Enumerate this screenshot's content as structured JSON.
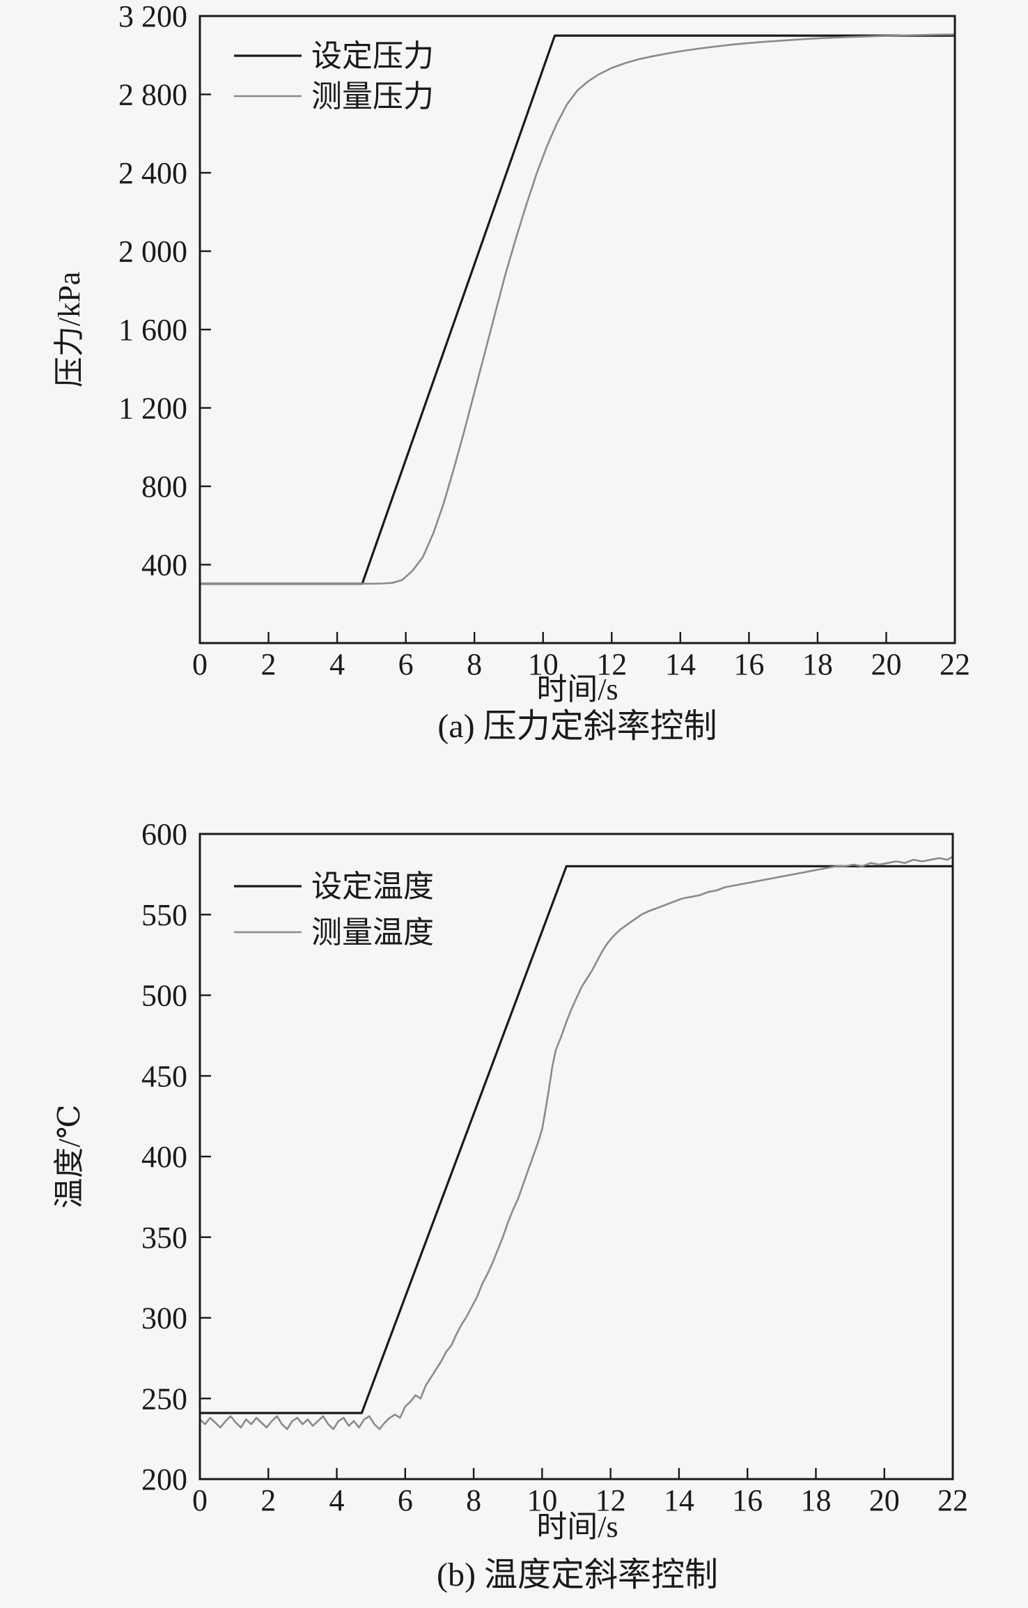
{
  "figure": {
    "background": "#f6f6f6",
    "frame_color": "#1a1a1a"
  },
  "chart_data": [
    {
      "id": "pressure",
      "type": "line",
      "caption": "(a) 压力定斜率控制",
      "x_title": "时间/s",
      "y_title": "压力/kPa",
      "xlim": [
        0,
        22
      ],
      "ylim": [
        0,
        3200
      ],
      "grid": false,
      "legend_position": "top-left",
      "x_ticks": {
        "values": [
          0,
          2,
          4,
          6,
          8,
          10,
          12,
          14,
          16,
          18,
          20,
          22
        ],
        "labels": [
          "0",
          "2",
          "4",
          "6",
          "8",
          "10",
          "12",
          "14",
          "16",
          "18",
          "20",
          "22"
        ]
      },
      "y_ticks": {
        "values": [
          400,
          800,
          1200,
          1600,
          2000,
          2400,
          2800,
          3200
        ],
        "labels": [
          "400",
          "800",
          "1 200",
          "1 600",
          "2 000",
          "2 400",
          "2 800",
          "3 200"
        ]
      },
      "legend": [
        {
          "key": "set",
          "label": "设定压力",
          "color": "#1a1a1a"
        },
        {
          "key": "measured",
          "label": "测量压力",
          "color": "#8a8a8a"
        }
      ],
      "series": [
        {
          "key": "set",
          "name": "设定压力",
          "color": "#1a1a1a",
          "width": 3.2,
          "points": [
            [
              0,
              303
            ],
            [
              4.73,
              303
            ],
            [
              10.34,
              3100
            ],
            [
              22,
              3100
            ]
          ]
        },
        {
          "key": "measured",
          "name": "测量压力",
          "color": "#8a8a8a",
          "width": 2.6,
          "points": [
            [
              0,
              303
            ],
            [
              0.5,
              303
            ],
            [
              1,
              303
            ],
            [
              1.5,
              303
            ],
            [
              2,
              303
            ],
            [
              2.5,
              303
            ],
            [
              3,
              303
            ],
            [
              3.5,
              303
            ],
            [
              4,
              303
            ],
            [
              4.5,
              303
            ],
            [
              5,
              303
            ],
            [
              5.3,
              304
            ],
            [
              5.6,
              307
            ],
            [
              5.9,
              322
            ],
            [
              6.2,
              370
            ],
            [
              6.5,
              440
            ],
            [
              6.8,
              560
            ],
            [
              7.1,
              710
            ],
            [
              7.4,
              890
            ],
            [
              7.7,
              1080
            ],
            [
              8.0,
              1280
            ],
            [
              8.3,
              1480
            ],
            [
              8.6,
              1680
            ],
            [
              8.9,
              1880
            ],
            [
              9.2,
              2060
            ],
            [
              9.5,
              2230
            ],
            [
              9.8,
              2390
            ],
            [
              10.1,
              2530
            ],
            [
              10.4,
              2650
            ],
            [
              10.7,
              2750
            ],
            [
              11.0,
              2820
            ],
            [
              11.3,
              2865
            ],
            [
              11.6,
              2900
            ],
            [
              12.0,
              2935
            ],
            [
              12.4,
              2960
            ],
            [
              12.8,
              2980
            ],
            [
              13.2,
              2995
            ],
            [
              13.6,
              3008
            ],
            [
              14.0,
              3020
            ],
            [
              14.5,
              3033
            ],
            [
              15.0,
              3044
            ],
            [
              15.5,
              3054
            ],
            [
              16.0,
              3062
            ],
            [
              16.5,
              3069
            ],
            [
              17.0,
              3075
            ],
            [
              17.5,
              3081
            ],
            [
              18.0,
              3086
            ],
            [
              18.5,
              3090
            ],
            [
              19.0,
              3093
            ],
            [
              19.5,
              3096
            ],
            [
              20.0,
              3099
            ],
            [
              20.5,
              3101
            ],
            [
              21.0,
              3103
            ],
            [
              21.5,
              3105
            ],
            [
              22,
              3106
            ]
          ]
        }
      ]
    },
    {
      "id": "temperature",
      "type": "line",
      "caption": "(b) 温度定斜率控制",
      "x_title": "时间/s",
      "y_title": "温度/℃",
      "xlim": [
        0,
        22
      ],
      "ylim": [
        200,
        600
      ],
      "grid": false,
      "legend_position": "top-left",
      "x_ticks": {
        "values": [
          0,
          2,
          4,
          6,
          8,
          10,
          12,
          14,
          16,
          18,
          20,
          22
        ],
        "labels": [
          "0",
          "2",
          "4",
          "6",
          "8",
          "10",
          "12",
          "14",
          "16",
          "18",
          "20",
          "22"
        ]
      },
      "y_ticks": {
        "values": [
          200,
          250,
          300,
          350,
          400,
          450,
          500,
          550,
          600
        ],
        "labels": [
          "200",
          "250",
          "300",
          "350",
          "400",
          "450",
          "500",
          "550",
          "600"
        ]
      },
      "legend": [
        {
          "key": "set",
          "label": "设定温度",
          "color": "#1a1a1a"
        },
        {
          "key": "measured",
          "label": "测量温度",
          "color": "#8a8a8a"
        }
      ],
      "series": [
        {
          "key": "set",
          "name": "设定温度",
          "color": "#1a1a1a",
          "width": 3.2,
          "points": [
            [
              0,
              241
            ],
            [
              4.73,
              241
            ],
            [
              10.71,
              580
            ],
            [
              22,
              580
            ]
          ]
        },
        {
          "key": "measured",
          "name": "测量温度",
          "color": "#8a8a8a",
          "width": 2.6,
          "points": [
            [
              0,
              237
            ],
            [
              0.15,
              234
            ],
            [
              0.3,
              238
            ],
            [
              0.45,
              235
            ],
            [
              0.6,
              232
            ],
            [
              0.75,
              236
            ],
            [
              0.9,
              239
            ],
            [
              1.05,
              235
            ],
            [
              1.2,
              232
            ],
            [
              1.35,
              237
            ],
            [
              1.5,
              234
            ],
            [
              1.65,
              238
            ],
            [
              1.8,
              235
            ],
            [
              1.95,
              232
            ],
            [
              2.1,
              236
            ],
            [
              2.25,
              239
            ],
            [
              2.4,
              234
            ],
            [
              2.55,
              231
            ],
            [
              2.7,
              236
            ],
            [
              2.85,
              238
            ],
            [
              3.0,
              234
            ],
            [
              3.15,
              237
            ],
            [
              3.3,
              233
            ],
            [
              3.45,
              236
            ],
            [
              3.6,
              239
            ],
            [
              3.75,
              234
            ],
            [
              3.9,
              231
            ],
            [
              4.05,
              236
            ],
            [
              4.2,
              238
            ],
            [
              4.35,
              233
            ],
            [
              4.5,
              236
            ],
            [
              4.65,
              232
            ],
            [
              4.8,
              237
            ],
            [
              4.95,
              239
            ],
            [
              5.1,
              234
            ],
            [
              5.25,
              231
            ],
            [
              5.4,
              235
            ],
            [
              5.55,
              238
            ],
            [
              5.7,
              240
            ],
            [
              5.85,
              238
            ],
            [
              6.0,
              245
            ],
            [
              6.15,
              248
            ],
            [
              6.3,
              252
            ],
            [
              6.45,
              250
            ],
            [
              6.6,
              258
            ],
            [
              6.75,
              263
            ],
            [
              6.9,
              268
            ],
            [
              7.05,
              273
            ],
            [
              7.2,
              279
            ],
            [
              7.35,
              283
            ],
            [
              7.5,
              290
            ],
            [
              7.65,
              296
            ],
            [
              7.8,
              301
            ],
            [
              7.95,
              307
            ],
            [
              8.1,
              313
            ],
            [
              8.25,
              321
            ],
            [
              8.4,
              327
            ],
            [
              8.55,
              334
            ],
            [
              8.7,
              342
            ],
            [
              8.85,
              350
            ],
            [
              9.0,
              359
            ],
            [
              9.15,
              367
            ],
            [
              9.3,
              374
            ],
            [
              9.45,
              383
            ],
            [
              9.6,
              392
            ],
            [
              9.75,
              401
            ],
            [
              9.9,
              410
            ],
            [
              10.0,
              417
            ],
            [
              10.1,
              429
            ],
            [
              10.2,
              442
            ],
            [
              10.3,
              456
            ],
            [
              10.4,
              466
            ],
            [
              10.55,
              474
            ],
            [
              10.7,
              483
            ],
            [
              10.85,
              491
            ],
            [
              11.0,
              498
            ],
            [
              11.15,
              505
            ],
            [
              11.3,
              510
            ],
            [
              11.45,
              515
            ],
            [
              11.6,
              521
            ],
            [
              11.75,
              527
            ],
            [
              11.9,
              532
            ],
            [
              12.1,
              537
            ],
            [
              12.3,
              541
            ],
            [
              12.5,
              544
            ],
            [
              12.7,
              547
            ],
            [
              12.9,
              550
            ],
            [
              13.1,
              552
            ],
            [
              13.35,
              554
            ],
            [
              13.6,
              556
            ],
            [
              13.85,
              558
            ],
            [
              14.1,
              560
            ],
            [
              14.35,
              561
            ],
            [
              14.6,
              562
            ],
            [
              14.85,
              564
            ],
            [
              15.1,
              565
            ],
            [
              15.35,
              567
            ],
            [
              15.6,
              568
            ],
            [
              15.85,
              569
            ],
            [
              16.1,
              570
            ],
            [
              16.35,
              571
            ],
            [
              16.6,
              572
            ],
            [
              16.85,
              573
            ],
            [
              17.1,
              574
            ],
            [
              17.35,
              575
            ],
            [
              17.6,
              576
            ],
            [
              17.85,
              577
            ],
            [
              18.1,
              578
            ],
            [
              18.35,
              579
            ],
            [
              18.6,
              580
            ],
            [
              18.85,
              580
            ],
            [
              19.1,
              581
            ],
            [
              19.35,
              580
            ],
            [
              19.6,
              582
            ],
            [
              19.85,
              581
            ],
            [
              20.1,
              582
            ],
            [
              20.35,
              583
            ],
            [
              20.6,
              582
            ],
            [
              20.85,
              584
            ],
            [
              21.1,
              583
            ],
            [
              21.35,
              584
            ],
            [
              21.6,
              585
            ],
            [
              21.85,
              584
            ],
            [
              22,
              586
            ]
          ]
        }
      ]
    }
  ]
}
